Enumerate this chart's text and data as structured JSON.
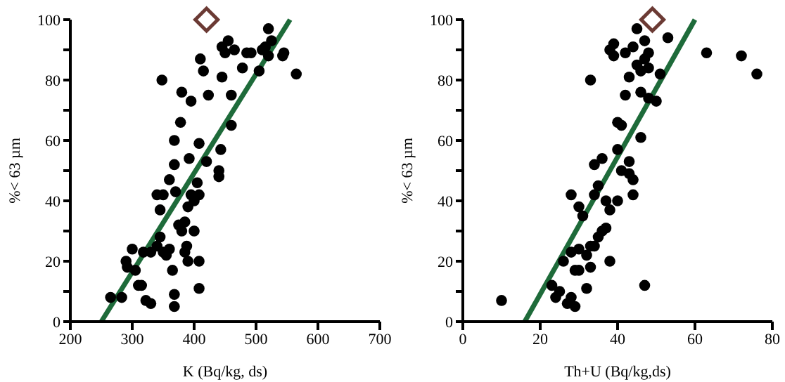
{
  "chart_data": [
    {
      "type": "scatter",
      "xlabel": "K (Bq/kg, ds)",
      "ylabel": "%< 63 µm",
      "xlim": [
        200,
        700
      ],
      "xticks": [
        200,
        300,
        400,
        500,
        600,
        700
      ],
      "ylim": [
        0,
        100
      ],
      "yticks": [
        0,
        {
          "value": 10,
          "label": null
        },
        20,
        {
          "value": 30,
          "label": null
        },
        40,
        {
          "value": 50,
          "label": null
        },
        60,
        {
          "value": 70,
          "label": null
        },
        80,
        {
          "value": 90,
          "label": null
        },
        100
      ],
      "series": [
        {
          "type": "scatter",
          "marker": "circle",
          "color": "#000000",
          "x": [
            265,
            283,
            290,
            292,
            300,
            305,
            310,
            315,
            322,
            330,
            318,
            330,
            340,
            345,
            340,
            350,
            345,
            348,
            350,
            355,
            360,
            360,
            365,
            368,
            368,
            368,
            368,
            370,
            375,
            378,
            380,
            380,
            385,
            385,
            388,
            390,
            390,
            392,
            395,
            395,
            400,
            400,
            405,
            408,
            408,
            408,
            408,
            410,
            415,
            420,
            423,
            440,
            440,
            443,
            445,
            445,
            450,
            455,
            460,
            460,
            465,
            478,
            485,
            492,
            505,
            510,
            515,
            520,
            520,
            525,
            543,
            545,
            565
          ],
          "values": [
            8,
            8,
            20,
            18,
            24,
            17,
            12,
            12,
            7,
            6,
            23,
            23,
            25,
            28,
            42,
            42,
            37,
            80,
            23,
            22,
            24,
            47,
            17,
            9,
            5,
            52,
            60,
            43,
            32,
            66,
            76,
            30,
            33,
            23,
            25,
            20,
            38,
            54,
            42,
            73,
            40,
            30,
            46,
            42,
            20,
            11,
            59,
            87,
            83,
            53,
            75,
            48,
            50,
            57,
            91,
            81,
            89,
            93,
            75,
            65,
            90,
            84,
            89,
            89,
            83,
            90,
            91,
            97,
            88,
            93,
            88,
            89,
            82
          ]
        },
        {
          "type": "line",
          "marker": "none",
          "line_style": "solid",
          "color": "#1e6b3a",
          "x": [
            250,
            555
          ],
          "values": [
            0,
            100
          ]
        },
        {
          "type": "scatter",
          "marker": "diamond",
          "color": "#6b3a34",
          "x": [
            420
          ],
          "values": [
            100
          ]
        }
      ]
    },
    {
      "type": "scatter",
      "xlabel": "Th+U (Bq/kg,ds)",
      "ylabel": "%< 63 µm",
      "xlim": [
        0,
        80
      ],
      "xticks": [
        0,
        20,
        40,
        60,
        80
      ],
      "ylim": [
        0,
        100
      ],
      "yticks": [
        0,
        {
          "value": 10,
          "label": null
        },
        20,
        {
          "value": 30,
          "label": null
        },
        40,
        {
          "value": 50,
          "label": null
        },
        60,
        {
          "value": 70,
          "label": null
        },
        80,
        {
          "value": 90,
          "label": null
        },
        100
      ],
      "series": [
        {
          "type": "scatter",
          "marker": "circle",
          "color": "#000000",
          "x": [
            10,
            23,
            24,
            25,
            26,
            27,
            28,
            28,
            28,
            29,
            29,
            30,
            30,
            30,
            31,
            32,
            32,
            33,
            33,
            33,
            34,
            34,
            34,
            35,
            35,
            36,
            36,
            37,
            37,
            38,
            38,
            38,
            39,
            39,
            40,
            40,
            40,
            41,
            41,
            42,
            42,
            43,
            43,
            43,
            44,
            44,
            44,
            45,
            45,
            46,
            46,
            46,
            47,
            47,
            47,
            48,
            48,
            48,
            50,
            51,
            53,
            63,
            72,
            76
          ],
          "values": [
            7,
            12,
            8,
            10,
            20,
            6,
            23,
            42,
            8,
            5,
            17,
            38,
            24,
            17,
            35,
            22,
            11,
            25,
            18,
            80,
            52,
            42,
            25,
            45,
            28,
            54,
            30,
            40,
            31,
            20,
            37,
            90,
            88,
            92,
            66,
            40,
            57,
            65,
            50,
            75,
            89,
            53,
            49,
            81,
            47,
            42,
            91,
            97,
            85,
            83,
            76,
            61,
            93,
            12,
            87,
            84,
            74,
            89,
            73,
            82,
            94,
            89,
            88,
            82
          ]
        },
        {
          "type": "line",
          "marker": "none",
          "line_style": "solid",
          "color": "#1e6b3a",
          "x": [
            16,
            60
          ],
          "values": [
            0,
            100
          ]
        },
        {
          "type": "scatter",
          "marker": "diamond",
          "color": "#6b3a34",
          "x": [
            49
          ],
          "values": [
            100
          ]
        }
      ]
    }
  ]
}
